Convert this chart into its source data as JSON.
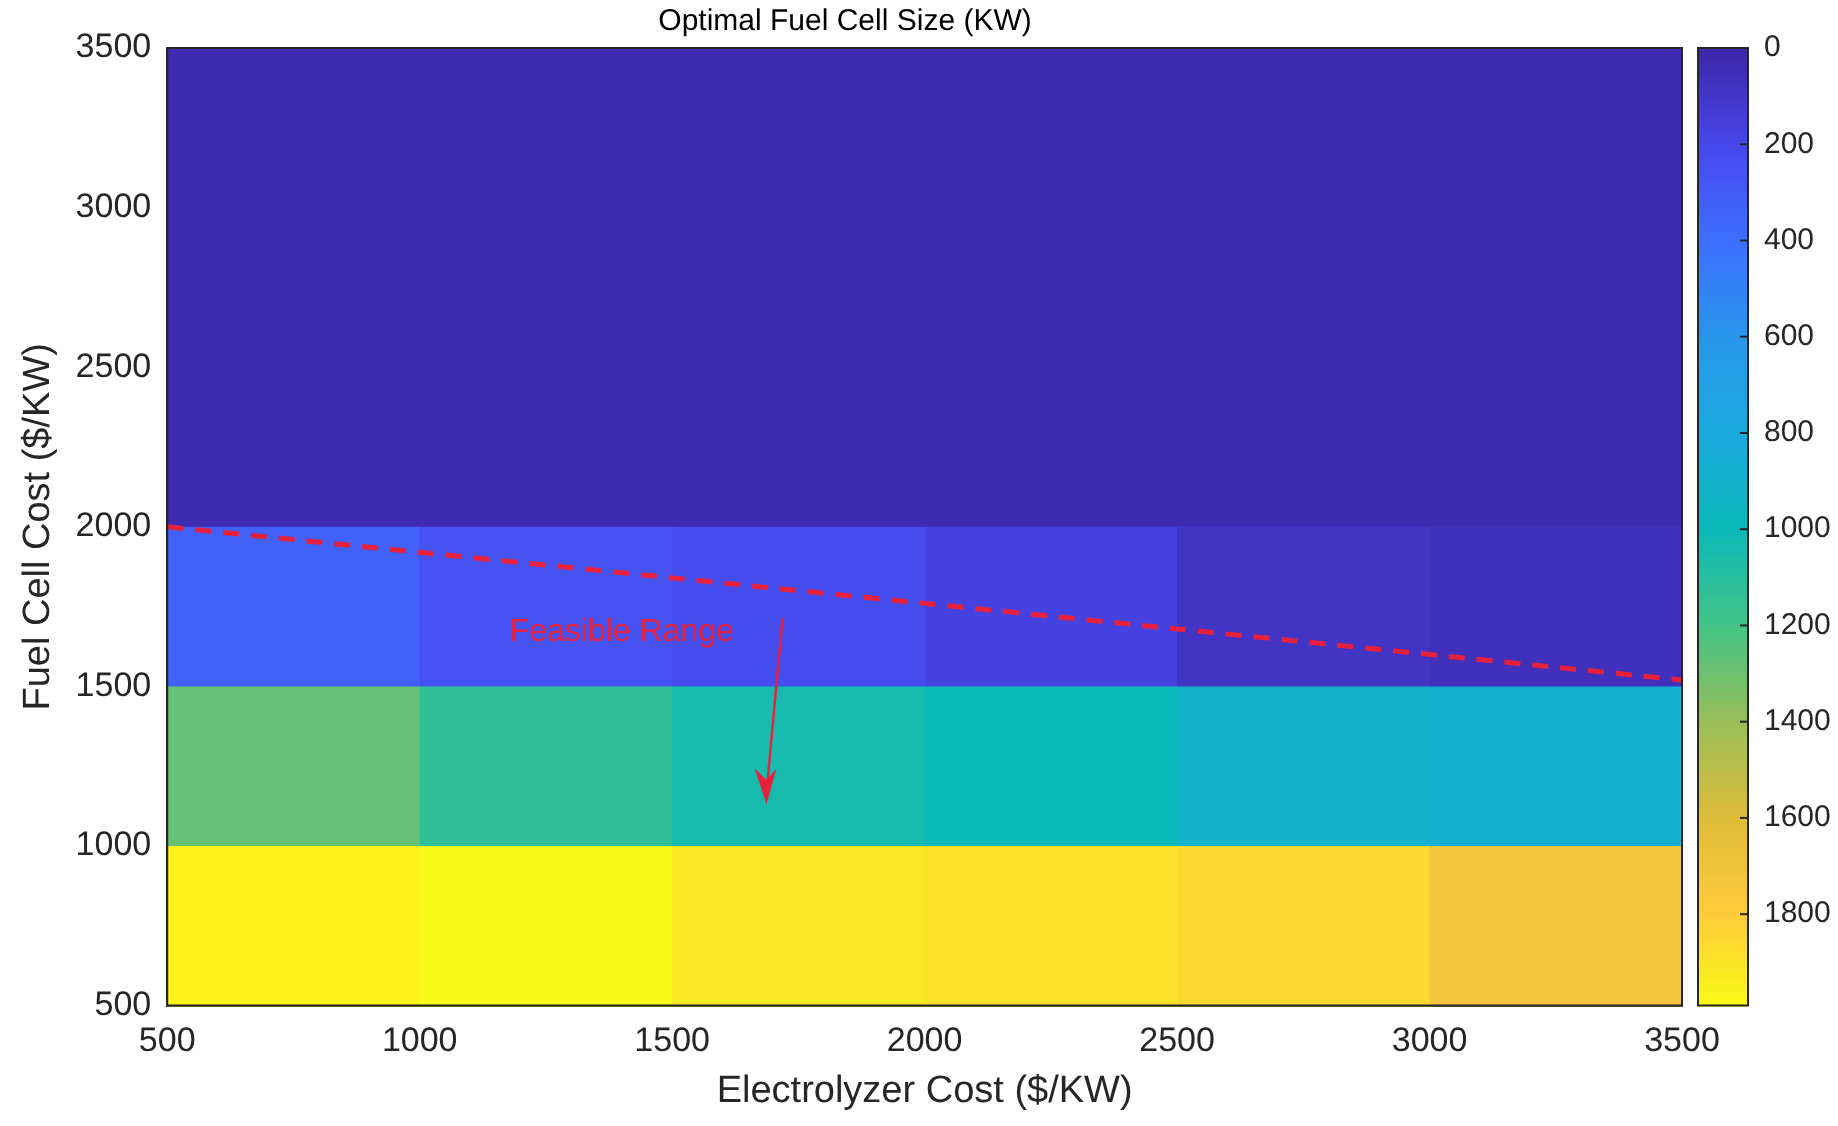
{
  "chart_data": {
    "type": "heatmap",
    "title": "Optimal Fuel Cell Size (KW)",
    "xlabel": "Electrolyzer Cost ($/KW)",
    "ylabel": "Fuel Cell Cost ($/KW)",
    "x": [
      750,
      1250,
      1750,
      2250,
      2750,
      3250
    ],
    "cells": [
      [
        30,
        30,
        30,
        30,
        30,
        30
      ],
      [
        30,
        30,
        30,
        30,
        30,
        30
      ],
      [
        30,
        30,
        30,
        30,
        30,
        30
      ],
      [
        330,
        250,
        230,
        170,
        90,
        60
      ],
      [
        1280,
        1130,
        1040,
        990,
        900,
        870
      ],
      [
        1950,
        1980,
        1910,
        1890,
        1850,
        1730
      ]
    ],
    "xlim": [
      500,
      3500
    ],
    "xticks": [
      500,
      1000,
      1500,
      2000,
      2500,
      3000,
      3500
    ],
    "ylim": [
      500,
      3500
    ],
    "yticks": [
      500,
      1000,
      1500,
      2000,
      2500,
      3000,
      3500
    ],
    "clim": [
      1990,
      0
    ],
    "cticks": [
      0,
      200,
      400,
      600,
      800,
      1000,
      1200,
      1400,
      1600,
      1800
    ],
    "series": [
      {
        "type": "line",
        "x": [
          500,
          3500
        ],
        "values": [
          2000,
          1520
        ],
        "color": "#e8203c",
        "line_style": "dashed",
        "marker": "none"
      }
    ],
    "annotations": [
      "Feasible Range"
    ]
  }
}
